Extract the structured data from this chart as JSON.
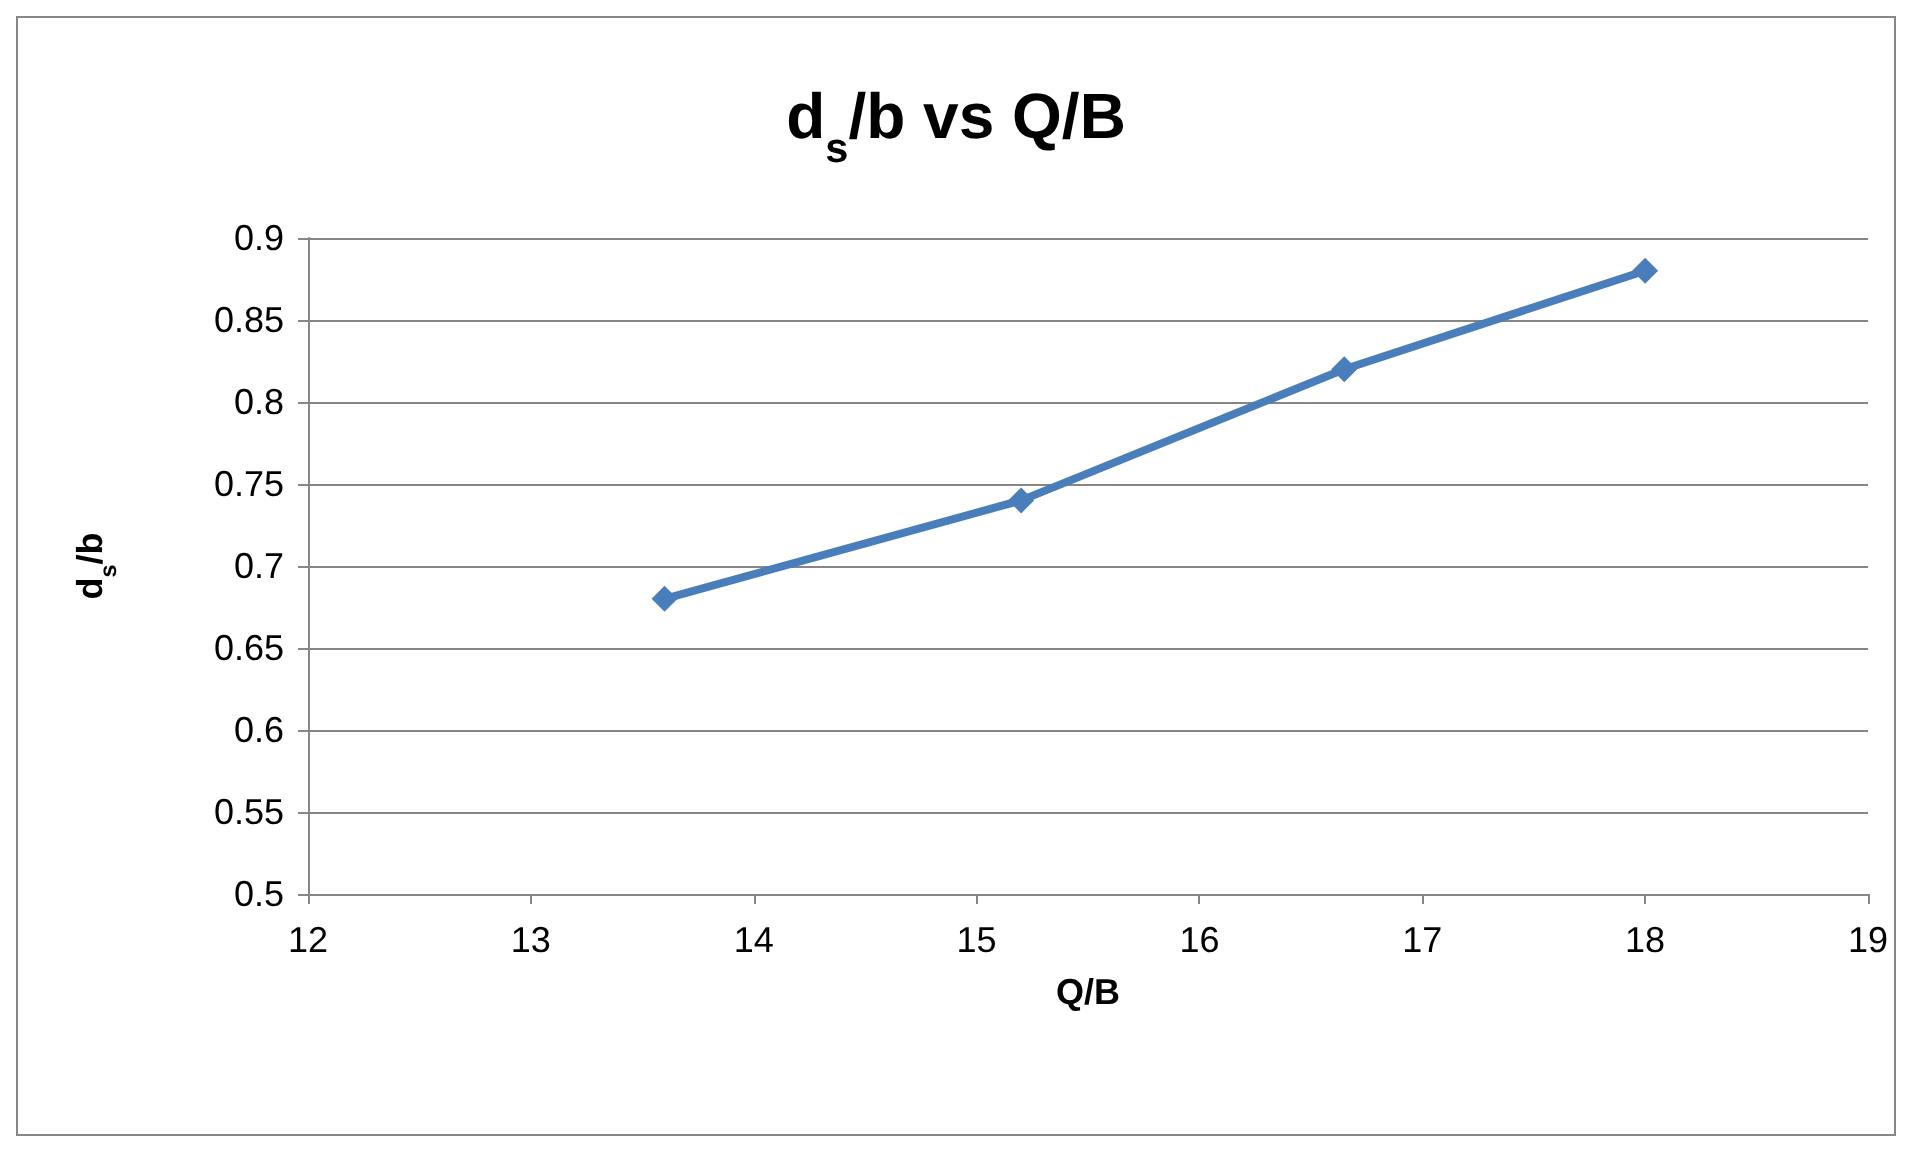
{
  "chart_data": {
    "type": "line",
    "title": "d$_{s}$/b vs Q/B",
    "xlabel": "Q/B",
    "ylabel": "d$_{s}$/b",
    "x": [
      13.6,
      15.2,
      16.65,
      18
    ],
    "series": [
      {
        "color": "#4a7ebb",
        "values": [
          0.68,
          0.74,
          0.82,
          0.88
        ]
      }
    ],
    "xlim": [
      12,
      19
    ],
    "xticks": [
      12,
      13,
      14,
      15,
      16,
      17,
      18,
      19
    ],
    "ylim": [
      0.5,
      0.9
    ],
    "yticks": [
      0.5,
      0.55,
      0.6,
      0.65,
      0.7,
      0.75,
      0.8,
      0.85,
      0.9
    ],
    "grid": "y",
    "marker": "diamond",
    "line_style": "solid"
  }
}
